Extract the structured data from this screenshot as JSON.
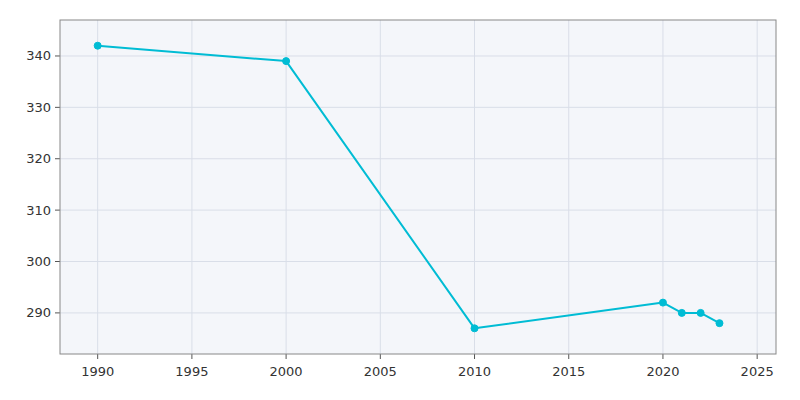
{
  "chart_data": {
    "type": "line",
    "x": [
      1990,
      2000,
      2010,
      2020,
      2021,
      2022,
      2023
    ],
    "values": [
      342,
      339,
      287,
      292,
      290,
      290,
      288
    ],
    "color": "#00bcd4",
    "marker": "circle",
    "xlim": [
      1988,
      2026
    ],
    "ylim": [
      282,
      347
    ],
    "xticks": [
      1990,
      1995,
      2000,
      2005,
      2010,
      2015,
      2020,
      2025
    ],
    "yticks": [
      290,
      300,
      310,
      320,
      330,
      340
    ],
    "grid": true
  }
}
